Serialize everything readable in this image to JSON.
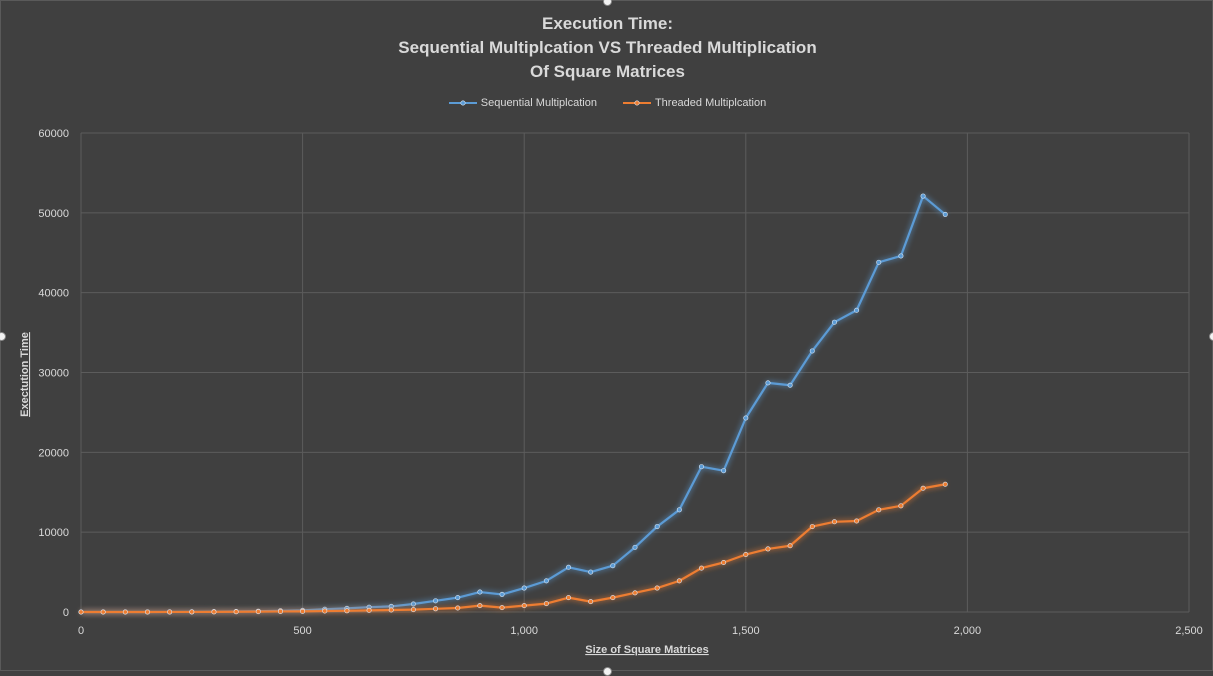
{
  "chart_data": {
    "type": "line",
    "title": [
      "Execution Time:",
      "Sequential Multiplcation VS Threaded Multiplication",
      "Of Square Matrices"
    ],
    "xlabel": "Size of Square Matrices",
    "ylabel": "Exectution Time",
    "xlim": [
      0,
      2500
    ],
    "ylim": [
      0,
      60000
    ],
    "x_ticks": [
      0,
      500,
      1000,
      1500,
      2000,
      2500
    ],
    "x_tick_labels": [
      "0",
      "500",
      "1,000",
      "1,500",
      "2,000",
      "2,500"
    ],
    "y_ticks": [
      0,
      10000,
      20000,
      30000,
      40000,
      50000,
      60000
    ],
    "y_tick_labels": [
      "0",
      "10000",
      "20000",
      "30000",
      "40000",
      "50000",
      "60000"
    ],
    "grid": true,
    "legend_position": "top",
    "x": [
      0,
      50,
      100,
      150,
      200,
      250,
      300,
      350,
      400,
      450,
      500,
      550,
      600,
      650,
      700,
      750,
      800,
      850,
      900,
      950,
      1000,
      1050,
      1100,
      1150,
      1200,
      1250,
      1300,
      1350,
      1400,
      1450,
      1500,
      1550,
      1600,
      1650,
      1700,
      1750,
      1800,
      1850,
      1900,
      1950
    ],
    "series": [
      {
        "name": "Sequential Multiplcation",
        "color": "#5b9bd5",
        "values": [
          0,
          0,
          0,
          0,
          10,
          20,
          40,
          60,
          100,
          150,
          200,
          350,
          450,
          600,
          700,
          1000,
          1400,
          1800,
          2500,
          2200,
          3000,
          3900,
          5600,
          5000,
          5800,
          8100,
          10700,
          12800,
          18200,
          17700,
          24300,
          28700,
          28400,
          32700,
          36300,
          37800,
          43800,
          44600,
          52100,
          49800
        ]
      },
      {
        "name": "Threaded Multiplcation",
        "color": "#ed7d31",
        "values": [
          0,
          0,
          0,
          0,
          5,
          10,
          20,
          30,
          50,
          70,
          80,
          120,
          150,
          200,
          250,
          300,
          400,
          500,
          800,
          550,
          800,
          1050,
          1800,
          1300,
          1800,
          2400,
          3000,
          3900,
          5500,
          6200,
          7200,
          7900,
          8300,
          10700,
          11300,
          11400,
          12800,
          13300,
          15500,
          16000
        ]
      }
    ]
  }
}
